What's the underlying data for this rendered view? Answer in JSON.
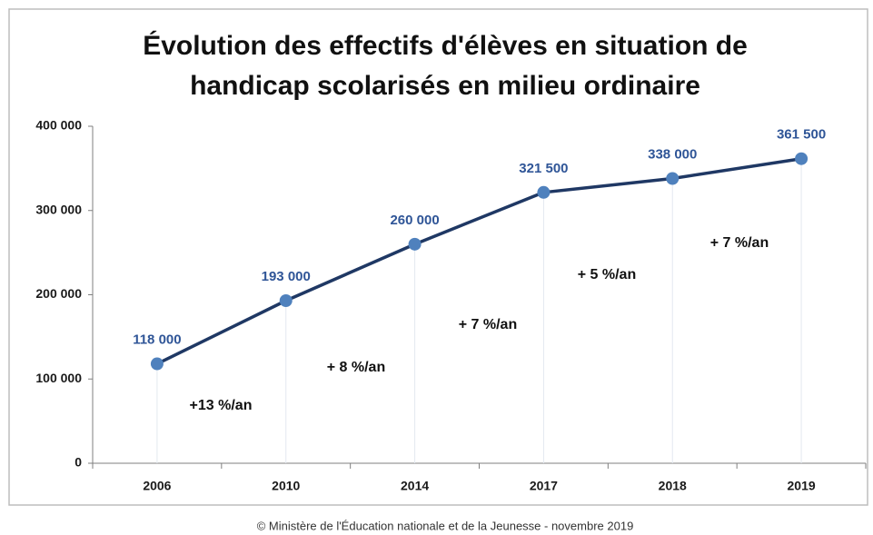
{
  "chart_data": {
    "type": "line",
    "title": [
      "Évolution des effectifs d'élèves en situation de",
      "handicap scolarisés en milieu ordinaire"
    ],
    "categories": [
      "2006",
      "2010",
      "2014",
      "2017",
      "2018",
      "2019"
    ],
    "series": [
      {
        "color": "#1f3864",
        "marker_color": "#4f81bd",
        "values": [
          118000,
          193000,
          260000,
          321500,
          338000,
          361500
        ],
        "value_labels": [
          "118 000",
          "193 000",
          "260 000",
          "321 500",
          "338 000",
          "361 500"
        ]
      }
    ],
    "ylim": [
      0,
      400000
    ],
    "yticks": [
      0,
      {
        "value": 100000,
        "label": "100 000"
      },
      {
        "value": 200000,
        "label": "200 000"
      },
      {
        "value": 300000,
        "label": "300 000"
      },
      {
        "value": 400000,
        "label": "400 000"
      }
    ],
    "annotations": [
      "+13 %/an",
      "+ 8 %/an",
      "+ 7 %/an",
      "+ 5 %/an",
      "+ 7 %/an"
    ],
    "source": "© Ministère de l'Éducation nationale et de la Jeunesse - novembre 2019"
  }
}
